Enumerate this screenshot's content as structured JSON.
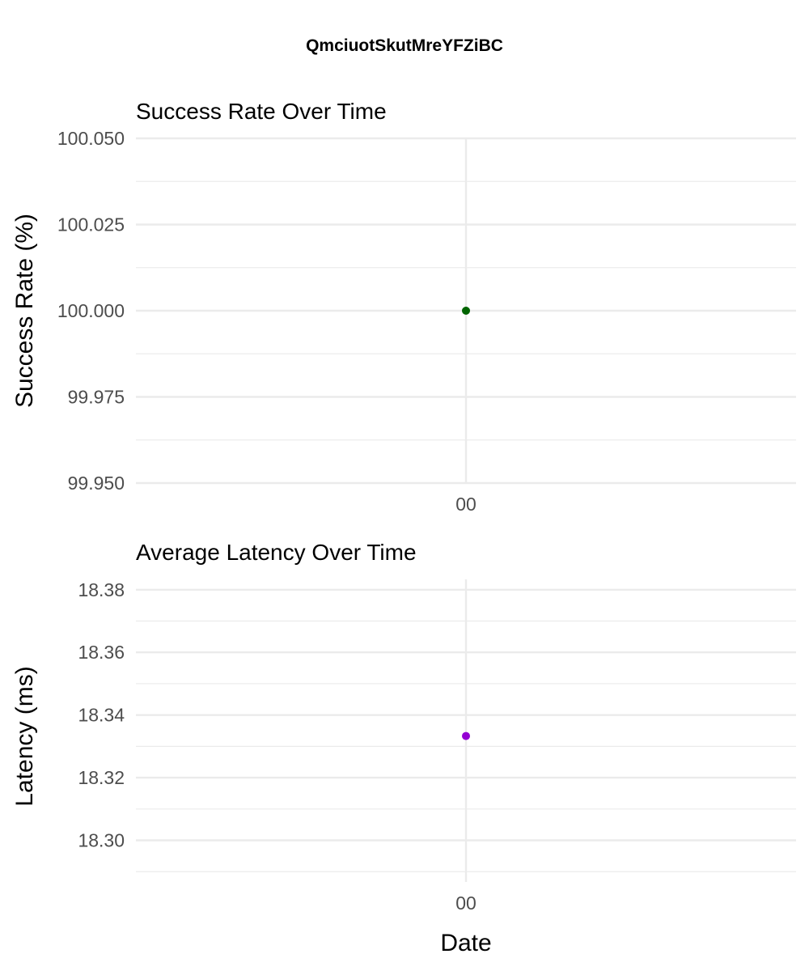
{
  "figure": {
    "title": "QmciuotSkutMreYFZiBC",
    "xlabel": "Date"
  },
  "chart_data": [
    {
      "type": "scatter",
      "title": "Success Rate Over Time",
      "xlabel": "",
      "ylabel": "Success Rate (%)",
      "x_ticks": [
        "00"
      ],
      "y_ticks": [
        "99.950",
        "99.975",
        "100.000",
        "100.025",
        "100.050"
      ],
      "ylim": [
        99.95,
        100.05
      ],
      "grid": true,
      "points": [
        {
          "x": "00",
          "y": 100.0
        }
      ],
      "color": "#006400"
    },
    {
      "type": "scatter",
      "title": "Average Latency Over Time",
      "xlabel": "Date",
      "ylabel": "Latency (ms)",
      "x_ticks": [
        "00"
      ],
      "y_ticks": [
        "18.30",
        "18.32",
        "18.34",
        "18.36",
        "18.38"
      ],
      "ylim": [
        18.2867,
        18.3833
      ],
      "grid": true,
      "points": [
        {
          "x": "00",
          "y": 18.3333
        }
      ],
      "color": "#9400D3"
    }
  ]
}
